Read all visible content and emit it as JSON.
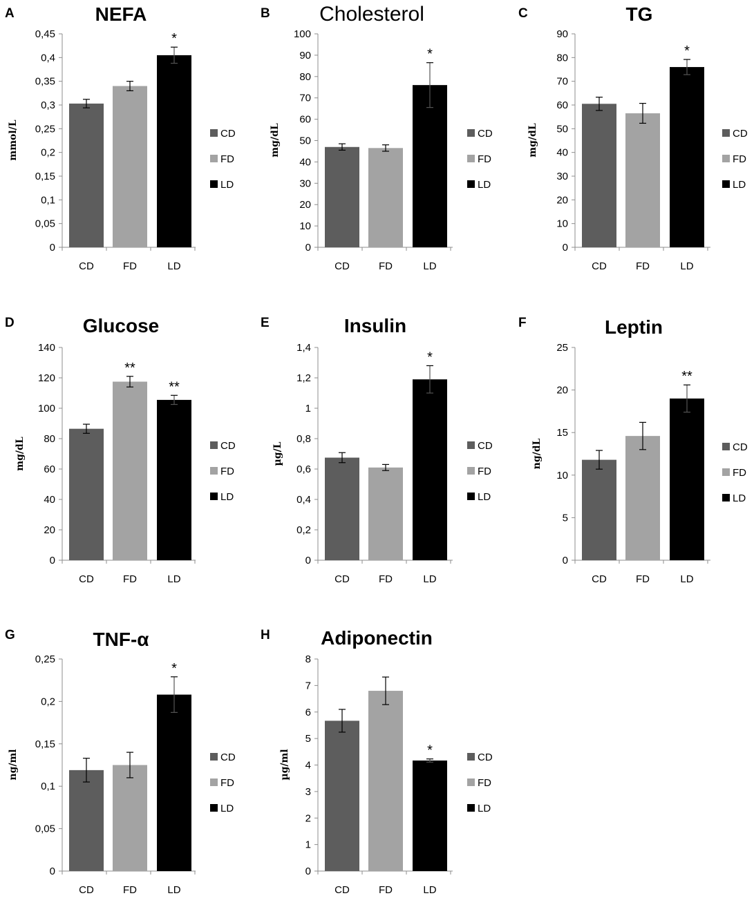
{
  "chart_data": [
    {
      "panel": "A",
      "type": "bar",
      "title": "NEFA",
      "title_weight": "bold",
      "ylabel": "mmol/L",
      "ylim": [
        0,
        0.45
      ],
      "yticks": [
        "0",
        "0,05",
        "0,1",
        "0,15",
        "0,2",
        "0,25",
        "0,3",
        "0,35",
        "0,4",
        "0,45"
      ],
      "tick_step": 0.05,
      "categories": [
        "CD",
        "FD",
        "LD"
      ],
      "values": [
        0.303,
        0.34,
        0.405
      ],
      "errors": [
        0.009,
        0.01,
        0.017
      ],
      "significance": [
        "",
        "",
        "*"
      ]
    },
    {
      "panel": "B",
      "type": "bar",
      "title": "Cholesterol",
      "title_weight": "normal",
      "ylabel": "mg/dL",
      "ylim": [
        0,
        100
      ],
      "yticks": [
        "0",
        "10",
        "20",
        "30",
        "40",
        "50",
        "60",
        "70",
        "80",
        "90",
        "100"
      ],
      "tick_step": 10,
      "categories": [
        "CD",
        "FD",
        "LD"
      ],
      "values": [
        47,
        46.5,
        76
      ],
      "errors": [
        1.5,
        1.5,
        10.5
      ],
      "significance": [
        "",
        "",
        "*"
      ]
    },
    {
      "panel": "C",
      "type": "bar",
      "title": "TG",
      "title_weight": "bold",
      "ylabel": "mg/dL",
      "ylim": [
        0,
        90
      ],
      "yticks": [
        "0",
        "10",
        "20",
        "30",
        "40",
        "50",
        "60",
        "70",
        "80",
        "90"
      ],
      "tick_step": 10,
      "categories": [
        "CD",
        "FD",
        "LD"
      ],
      "values": [
        60.5,
        56.5,
        76
      ],
      "errors": [
        2.8,
        4.2,
        3.2
      ],
      "significance": [
        "",
        "",
        "*"
      ]
    },
    {
      "panel": "D",
      "type": "bar",
      "title": "Glucose",
      "title_weight": "bold",
      "ylabel": "mg/dL",
      "ylim": [
        0,
        140
      ],
      "yticks": [
        "0",
        "20",
        "40",
        "60",
        "80",
        "100",
        "120",
        "140"
      ],
      "tick_step": 20,
      "categories": [
        "CD",
        "FD",
        "LD"
      ],
      "values": [
        86.5,
        117.5,
        105.5
      ],
      "errors": [
        3,
        3.5,
        3
      ],
      "significance": [
        "",
        "**",
        "**"
      ]
    },
    {
      "panel": "E",
      "type": "bar",
      "title": "Insulin",
      "title_weight": "bold",
      "ylabel": "µg/L",
      "ylim": [
        0,
        1.4
      ],
      "yticks": [
        "0",
        "0,2",
        "0,4",
        "0,6",
        "0,8",
        "1",
        "1,2",
        "1,4"
      ],
      "tick_step": 0.2,
      "categories": [
        "CD",
        "FD",
        "LD"
      ],
      "values": [
        0.675,
        0.61,
        1.19
      ],
      "errors": [
        0.033,
        0.02,
        0.09
      ],
      "significance": [
        "",
        "",
        "*"
      ]
    },
    {
      "panel": "F",
      "type": "bar",
      "title": "Leptin",
      "title_weight": "bold",
      "ylabel": "ng/dL",
      "ylim": [
        0,
        25
      ],
      "yticks": [
        "0",
        "5",
        "10",
        "15",
        "20",
        "25"
      ],
      "tick_step": 5,
      "categories": [
        "CD",
        "FD",
        "LD"
      ],
      "values": [
        11.8,
        14.6,
        19
      ],
      "errors": [
        1.1,
        1.6,
        1.6
      ],
      "significance": [
        "",
        "",
        "**"
      ]
    },
    {
      "panel": "G",
      "type": "bar",
      "title": "TNF-α",
      "title_weight": "bold",
      "ylabel": "ng/ml",
      "ylim": [
        0,
        0.25
      ],
      "yticks": [
        "0",
        "0,05",
        "0,1",
        "0,15",
        "0,2",
        "0,25"
      ],
      "tick_step": 0.05,
      "categories": [
        "CD",
        "FD",
        "LD"
      ],
      "values": [
        0.119,
        0.125,
        0.208
      ],
      "errors": [
        0.014,
        0.015,
        0.021
      ],
      "significance": [
        "",
        "",
        "*"
      ]
    },
    {
      "panel": "H",
      "type": "bar",
      "title": "Adiponectin",
      "title_weight": "bold",
      "ylabel": "µg/ml",
      "ylim": [
        0,
        8
      ],
      "yticks": [
        "0",
        "1",
        "2",
        "3",
        "4",
        "5",
        "6",
        "7",
        "8"
      ],
      "tick_step": 1,
      "categories": [
        "CD",
        "FD",
        "LD"
      ],
      "values": [
        5.67,
        6.8,
        4.17
      ],
      "errors": [
        0.43,
        0.52,
        0.06
      ],
      "significance": [
        "",
        "",
        "*"
      ]
    }
  ],
  "legend": {
    "entries": [
      "CD",
      "FD",
      "LD"
    ],
    "colors": [
      "#5d5d5d",
      "#a3a3a3",
      "#000000"
    ]
  },
  "colors": {
    "axis": "#8c8c8c",
    "errorbar": "#000000"
  }
}
